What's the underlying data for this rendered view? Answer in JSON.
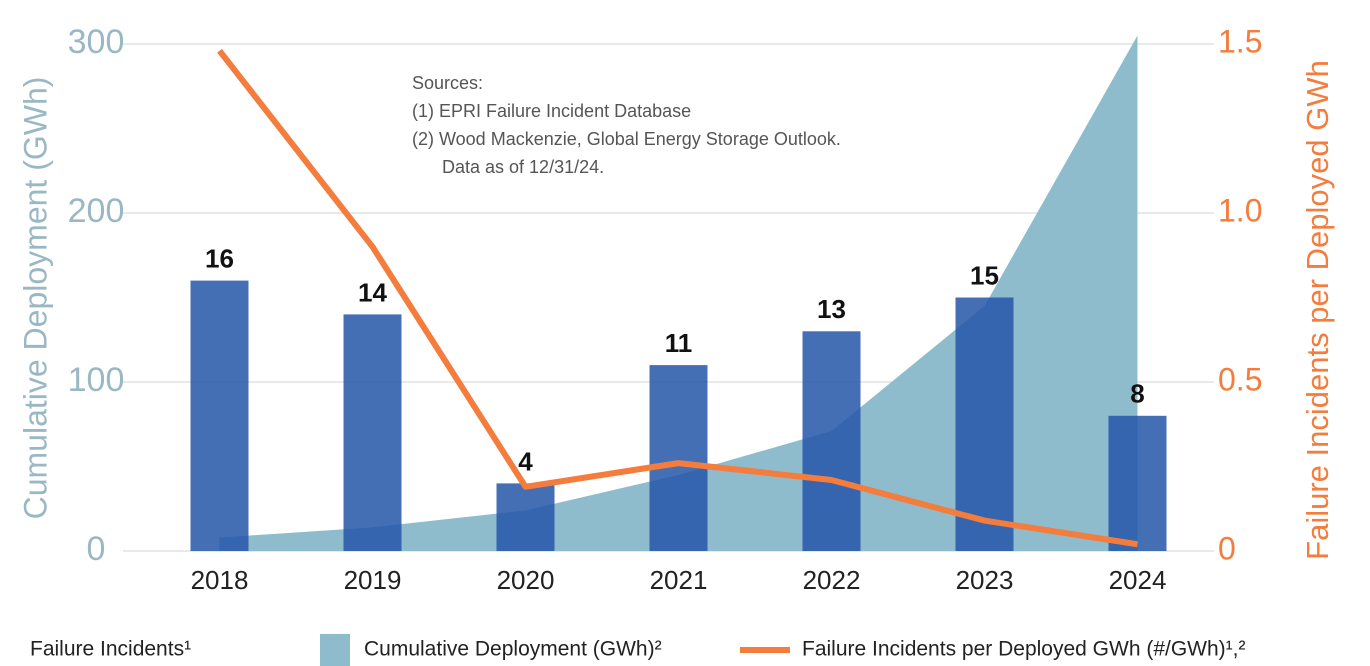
{
  "chart_data": {
    "type": "bar+area+line",
    "categories": [
      "2018",
      "2019",
      "2020",
      "2021",
      "2022",
      "2023",
      "2024"
    ],
    "series": [
      {
        "name": "Failure Incidents¹",
        "type": "bar",
        "color": "#2456a8",
        "axis": "y3",
        "values": [
          16,
          14,
          4,
          11,
          13,
          15,
          8
        ]
      },
      {
        "name": "Cumulative Deployment (GWh)²",
        "type": "area",
        "color": "#8fbccd",
        "axis": "y",
        "values": [
          8,
          14,
          24,
          45,
          71,
          145,
          305
        ]
      },
      {
        "name": "Failure Incidents per Deployed GWh (#/GWh)¹,²",
        "type": "line",
        "color": "#f47c3c",
        "axis": "y2",
        "values": [
          1.48,
          0.9,
          0.19,
          0.26,
          0.21,
          0.09,
          0.02
        ]
      }
    ],
    "ylabel": "Cumulative Deployment (GWh)",
    "y2label": "Failure Incidents per Deployed GWh",
    "ylim": [
      0,
      300
    ],
    "yticks": [
      0,
      100,
      200,
      300
    ],
    "y2lim": [
      0,
      1.5
    ],
    "y2ticks": [
      0,
      0.5,
      {
        "value": 1,
        "label": "1.0"
      },
      1.5
    ],
    "y3lim": [
      0,
      30
    ],
    "grid": true,
    "annotations": [
      "Sources:",
      "(1) EPRI Failure Incident Database",
      "(2) Wood Mackenzie, Global Energy Storage Outlook.",
      "Data as of 12/31/24."
    ]
  }
}
